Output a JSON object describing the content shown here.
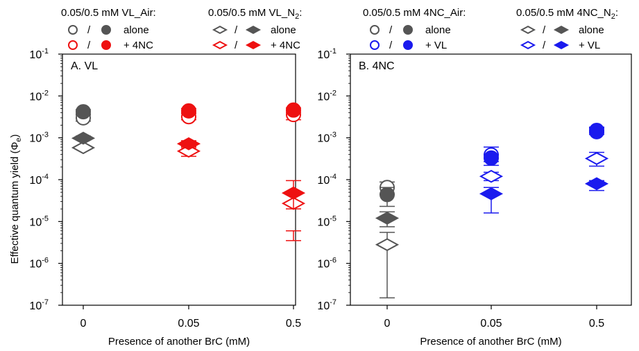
{
  "y_axis_label": "Effective quantum yield (Φ",
  "y_axis_label_sub": "e",
  "y_axis_label_close": ")",
  "x_axis_label": "Presence of another BrC (mM)",
  "colors": {
    "gray": "#555555",
    "red": "#ee1111",
    "blue": "#1a1aee"
  },
  "chart_data": [
    {
      "type": "scatter",
      "panel_label": "A. VL",
      "xlabel": "Presence of another BrC (mM)",
      "ylabel": "Effective quantum yield (Φe)",
      "y_scale": "log",
      "ylim": [
        1e-07,
        0.1
      ],
      "y_ticks": [
        {
          "value": 1e-07,
          "base": "10",
          "exp": "-7"
        },
        {
          "value": 1e-06,
          "base": "10",
          "exp": "-6"
        },
        {
          "value": 1e-05,
          "base": "10",
          "exp": "-5"
        },
        {
          "value": 0.0001,
          "base": "10",
          "exp": "-4"
        },
        {
          "value": 0.001,
          "base": "10",
          "exp": "-3"
        },
        {
          "value": 0.01,
          "base": "10",
          "exp": "-2"
        },
        {
          "value": 0.1,
          "base": "10",
          "exp": "-1"
        }
      ],
      "categories": [
        "0",
        "0.05",
        "0.5"
      ],
      "legend": [
        {
          "title": "0.05/0.5 mM VL_Air:",
          "title_sub": "",
          "title_end": "",
          "marker": "circle",
          "rows": [
            {
              "label": "alone",
              "color": "gray"
            },
            {
              "label": "+ 4NC",
              "color": "red"
            }
          ]
        },
        {
          "title": "0.05/0.5 mM VL_N",
          "title_sub": "2",
          "title_end": ":",
          "marker": "diamond",
          "rows": [
            {
              "label": "alone",
              "color": "gray"
            },
            {
              "label": "+ 4NC",
              "color": "red"
            }
          ]
        }
      ],
      "series": [
        {
          "name": "0.05 mM VL_Air",
          "marker": "circle",
          "filled": false,
          "color": "gray",
          "x_index": 0,
          "y": 0.003,
          "err": [
            0.0025,
            0.0035
          ]
        },
        {
          "name": "0.5 mM VL_Air",
          "marker": "circle",
          "filled": true,
          "color": "gray",
          "x_index": 0,
          "y": 0.0042,
          "err": [
            0.0037,
            0.0047
          ]
        },
        {
          "name": "0.05 mM VL_N2",
          "marker": "diamond",
          "filled": false,
          "color": "gray",
          "x_index": 0,
          "y": 0.00058,
          "err": [
            0.00052,
            0.00064
          ]
        },
        {
          "name": "0.5 mM VL_N2",
          "marker": "diamond",
          "filled": true,
          "color": "gray",
          "x_index": 0,
          "y": 0.00098,
          "err": [
            0.0009,
            0.0011
          ]
        },
        {
          "name": "0.05 mM VL_Air + 4NC",
          "marker": "circle",
          "filled": false,
          "color": "red",
          "x_index": 1,
          "y": 0.0032,
          "err": [
            0.0027,
            0.0038
          ]
        },
        {
          "name": "0.5 mM VL_Air + 4NC",
          "marker": "circle",
          "filled": true,
          "color": "red",
          "x_index": 1,
          "y": 0.0044,
          "err": [
            0.0039,
            0.005
          ]
        },
        {
          "name": "0.05 mM VL_N2 + 4NC",
          "marker": "diamond",
          "filled": false,
          "color": "red",
          "x_index": 1,
          "y": 0.00048,
          "err": [
            0.00036,
            0.00058
          ]
        },
        {
          "name": "0.5 mM VL_N2 + 4NC",
          "marker": "diamond",
          "filled": true,
          "color": "red",
          "x_index": 1,
          "y": 0.00072,
          "err": [
            0.00062,
            0.00085
          ]
        },
        {
          "name": "0.05 mM VL_Air + 4NC (0.5)",
          "marker": "circle",
          "filled": false,
          "color": "red",
          "x_index": 2,
          "y": 0.0036,
          "err": [
            0.0027,
            0.0045
          ]
        },
        {
          "name": "0.5 mM VL_Air + 4NC (0.5)",
          "marker": "circle",
          "filled": true,
          "color": "red",
          "x_index": 2,
          "y": 0.0046,
          "err": [
            0.0041,
            0.0052
          ]
        },
        {
          "name": "0.05 mM VL_N2 + 4NC (0.5)",
          "marker": "diamond",
          "filled": false,
          "color": "red",
          "x_index": 2,
          "y": 2.7e-05,
          "err": [
            3.5e-06,
            6e-06
          ]
        },
        {
          "name": "0.5 mM VL_N2 + 4NC (0.5)",
          "marker": "diamond",
          "filled": true,
          "color": "red",
          "x_index": 2,
          "y": 4.8e-05,
          "err": [
            2e-05,
            9.5e-05
          ]
        }
      ]
    },
    {
      "type": "scatter",
      "panel_label": "B. 4NC",
      "xlabel": "Presence of another BrC (mM)",
      "y_scale": "log",
      "ylim": [
        1e-07,
        0.1
      ],
      "y_ticks": [
        {
          "value": 1e-07,
          "base": "10",
          "exp": "-7"
        },
        {
          "value": 1e-06,
          "base": "10",
          "exp": "-6"
        },
        {
          "value": 1e-05,
          "base": "10",
          "exp": "-5"
        },
        {
          "value": 0.0001,
          "base": "10",
          "exp": "-4"
        },
        {
          "value": 0.001,
          "base": "10",
          "exp": "-3"
        },
        {
          "value": 0.01,
          "base": "10",
          "exp": "-2"
        },
        {
          "value": 0.1,
          "base": "10",
          "exp": "-1"
        }
      ],
      "categories": [
        "0",
        "0.05",
        "0.5"
      ],
      "legend": [
        {
          "title": "0.05/0.5 mM 4NC_Air:",
          "title_sub": "",
          "title_end": "",
          "marker": "circle",
          "rows": [
            {
              "label": "alone",
              "color": "gray"
            },
            {
              "label": "+ VL",
              "color": "blue"
            }
          ]
        },
        {
          "title": "0.05/0.5 mM 4NC_N",
          "title_sub": "2",
          "title_end": ":",
          "marker": "diamond",
          "rows": [
            {
              "label": "alone",
              "color": "gray"
            },
            {
              "label": "+ VL",
              "color": "blue"
            }
          ]
        }
      ],
      "series": [
        {
          "name": "0.05 mM 4NC_Air",
          "marker": "circle",
          "filled": false,
          "color": "gray",
          "x_index": 0,
          "y": 6.5e-05,
          "err": [
            4.5e-05,
            8.8e-05
          ]
        },
        {
          "name": "0.5 mM 4NC_Air",
          "marker": "circle",
          "filled": true,
          "color": "gray",
          "x_index": 0,
          "y": 4.4e-05,
          "err": [
            2.3e-05,
            6.5e-05
          ]
        },
        {
          "name": "0.05 mM 4NC_N2",
          "marker": "diamond",
          "filled": false,
          "color": "gray",
          "x_index": 0,
          "y": 2.8e-06,
          "err": [
            1.5e-07,
            5.5e-06
          ]
        },
        {
          "name": "0.5 mM 4NC_N2",
          "marker": "diamond",
          "filled": true,
          "color": "gray",
          "x_index": 0,
          "y": 1.2e-05,
          "err": [
            7.5e-06,
            1.7e-05
          ]
        },
        {
          "name": "0.05 mM 4NC_Air + VL",
          "marker": "circle",
          "filled": false,
          "color": "blue",
          "x_index": 1,
          "y": 0.00039,
          "err": [
            0.00022,
            0.0006
          ]
        },
        {
          "name": "0.5 mM 4NC_Air + VL",
          "marker": "circle",
          "filled": true,
          "color": "blue",
          "x_index": 1,
          "y": 0.00033,
          "err": [
            0.00027,
            0.0004
          ]
        },
        {
          "name": "0.05 mM 4NC_N2 + VL",
          "marker": "diamond",
          "filled": false,
          "color": "blue",
          "x_index": 1,
          "y": 0.00012,
          "err": [
            9.5e-05,
            0.00015
          ]
        },
        {
          "name": "0.5 mM 4NC_N2 + VL",
          "marker": "diamond",
          "filled": true,
          "color": "blue",
          "x_index": 1,
          "y": 4.6e-05,
          "err": [
            1.6e-05,
            6.5e-05
          ]
        },
        {
          "name": "0.05 mM 4NC_Air + VL (0.5)",
          "marker": "circle",
          "filled": false,
          "color": "blue",
          "x_index": 2,
          "y": 0.0014,
          "err": [
            0.0012,
            0.0017
          ]
        },
        {
          "name": "0.5 mM 4NC_Air + VL (0.5)",
          "marker": "circle",
          "filled": true,
          "color": "blue",
          "x_index": 2,
          "y": 0.0015,
          "err": [
            0.0013,
            0.0018
          ]
        },
        {
          "name": "0.05 mM 4NC_N2 + VL (0.5)",
          "marker": "diamond",
          "filled": false,
          "color": "blue",
          "x_index": 2,
          "y": 0.00032,
          "err": [
            0.00021,
            0.00045
          ]
        },
        {
          "name": "0.5 mM 4NC_N2 + VL (0.5)",
          "marker": "diamond",
          "filled": true,
          "color": "blue",
          "x_index": 2,
          "y": 8e-05,
          "err": [
            5.5e-05,
            9.5e-05
          ]
        }
      ]
    }
  ]
}
